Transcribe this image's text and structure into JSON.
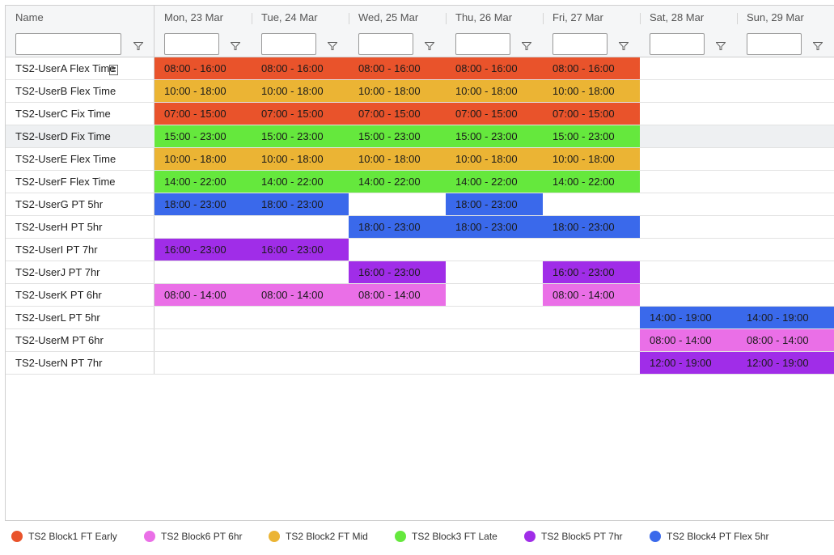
{
  "colors": {
    "block1": "#e9532b",
    "block2": "#ebb434",
    "block3": "#65e83d",
    "block4": "#3a69eb",
    "block5": "#a02de8",
    "block6": "#ea6fe7"
  },
  "columns": {
    "name": "Name",
    "days": [
      "Mon, 23 Mar",
      "Tue, 24 Mar",
      "Wed, 25 Mar",
      "Thu, 26 Mar",
      "Fri, 27 Mar",
      "Sat, 28 Mar",
      "Sun, 29 Mar"
    ]
  },
  "rows": [
    {
      "name": "TS2-UserA Flex Time",
      "shifts": [
        {
          "day": 0,
          "time": "08:00 - 16:00",
          "block": "block1"
        },
        {
          "day": 1,
          "time": "08:00 - 16:00",
          "block": "block1"
        },
        {
          "day": 2,
          "time": "08:00 - 16:00",
          "block": "block1"
        },
        {
          "day": 3,
          "time": "08:00 - 16:00",
          "block": "block1"
        },
        {
          "day": 4,
          "time": "08:00 - 16:00",
          "block": "block1"
        }
      ]
    },
    {
      "name": "TS2-UserB Flex Time",
      "shifts": [
        {
          "day": 0,
          "time": "10:00 - 18:00",
          "block": "block2"
        },
        {
          "day": 1,
          "time": "10:00 - 18:00",
          "block": "block2"
        },
        {
          "day": 2,
          "time": "10:00 - 18:00",
          "block": "block2"
        },
        {
          "day": 3,
          "time": "10:00 - 18:00",
          "block": "block2"
        },
        {
          "day": 4,
          "time": "10:00 - 18:00",
          "block": "block2"
        }
      ]
    },
    {
      "name": "TS2-UserC Fix Time",
      "shifts": [
        {
          "day": 0,
          "time": "07:00 - 15:00",
          "block": "block1"
        },
        {
          "day": 1,
          "time": "07:00 - 15:00",
          "block": "block1"
        },
        {
          "day": 2,
          "time": "07:00 - 15:00",
          "block": "block1"
        },
        {
          "day": 3,
          "time": "07:00 - 15:00",
          "block": "block1"
        },
        {
          "day": 4,
          "time": "07:00 - 15:00",
          "block": "block1"
        }
      ]
    },
    {
      "name": "TS2-UserD Fix Time",
      "selected": true,
      "shifts": [
        {
          "day": 0,
          "time": "15:00 - 23:00",
          "block": "block3"
        },
        {
          "day": 1,
          "time": "15:00 - 23:00",
          "block": "block3"
        },
        {
          "day": 2,
          "time": "15:00 - 23:00",
          "block": "block3"
        },
        {
          "day": 3,
          "time": "15:00 - 23:00",
          "block": "block3"
        },
        {
          "day": 4,
          "time": "15:00 - 23:00",
          "block": "block3"
        }
      ]
    },
    {
      "name": "TS2-UserE Flex Time",
      "shifts": [
        {
          "day": 0,
          "time": "10:00 - 18:00",
          "block": "block2"
        },
        {
          "day": 1,
          "time": "10:00 - 18:00",
          "block": "block2"
        },
        {
          "day": 2,
          "time": "10:00 - 18:00",
          "block": "block2"
        },
        {
          "day": 3,
          "time": "10:00 - 18:00",
          "block": "block2"
        },
        {
          "day": 4,
          "time": "10:00 - 18:00",
          "block": "block2"
        }
      ]
    },
    {
      "name": "TS2-UserF Flex Time",
      "shifts": [
        {
          "day": 0,
          "time": "14:00 - 22:00",
          "block": "block3"
        },
        {
          "day": 1,
          "time": "14:00 - 22:00",
          "block": "block3"
        },
        {
          "day": 2,
          "time": "14:00 - 22:00",
          "block": "block3"
        },
        {
          "day": 3,
          "time": "14:00 - 22:00",
          "block": "block3"
        },
        {
          "day": 4,
          "time": "14:00 - 22:00",
          "block": "block3"
        }
      ]
    },
    {
      "name": "TS2-UserG PT 5hr",
      "shifts": [
        {
          "day": 0,
          "time": "18:00 - 23:00",
          "block": "block4"
        },
        {
          "day": 1,
          "time": "18:00 - 23:00",
          "block": "block4"
        },
        {
          "day": 3,
          "time": "18:00 - 23:00",
          "block": "block4"
        }
      ]
    },
    {
      "name": "TS2-UserH PT 5hr",
      "shifts": [
        {
          "day": 2,
          "time": "18:00 - 23:00",
          "block": "block4"
        },
        {
          "day": 3,
          "time": "18:00 - 23:00",
          "block": "block4"
        },
        {
          "day": 4,
          "time": "18:00 - 23:00",
          "block": "block4"
        }
      ]
    },
    {
      "name": "TS2-UserI PT 7hr",
      "shifts": [
        {
          "day": 0,
          "time": "16:00 - 23:00",
          "block": "block5"
        },
        {
          "day": 1,
          "time": "16:00 - 23:00",
          "block": "block5"
        }
      ]
    },
    {
      "name": "TS2-UserJ PT 7hr",
      "shifts": [
        {
          "day": 2,
          "time": "16:00 - 23:00",
          "block": "block5"
        },
        {
          "day": 4,
          "time": "16:00 - 23:00",
          "block": "block5"
        }
      ]
    },
    {
      "name": "TS2-UserK PT 6hr",
      "shifts": [
        {
          "day": 0,
          "time": "08:00 - 14:00",
          "block": "block6"
        },
        {
          "day": 1,
          "time": "08:00 - 14:00",
          "block": "block6"
        },
        {
          "day": 2,
          "time": "08:00 - 14:00",
          "block": "block6"
        },
        {
          "day": 4,
          "time": "08:00 - 14:00",
          "block": "block6"
        }
      ]
    },
    {
      "name": "TS2-UserL PT 5hr",
      "shifts": [
        {
          "day": 5,
          "time": "14:00 - 19:00",
          "block": "block4"
        },
        {
          "day": 6,
          "time": "14:00 - 19:00",
          "block": "block4"
        }
      ]
    },
    {
      "name": "TS2-UserM PT 6hr",
      "shifts": [
        {
          "day": 5,
          "time": "08:00 - 14:00",
          "block": "block6"
        },
        {
          "day": 6,
          "time": "08:00 - 14:00",
          "block": "block6"
        }
      ]
    },
    {
      "name": "TS2-UserN PT 7hr",
      "shifts": [
        {
          "day": 5,
          "time": "12:00 - 19:00",
          "block": "block5"
        },
        {
          "day": 6,
          "time": "12:00 - 19:00",
          "block": "block5"
        }
      ]
    }
  ],
  "legend": [
    {
      "label": "TS2 Block1 FT Early",
      "block": "block1"
    },
    {
      "label": "TS2 Block6 PT 6hr",
      "block": "block6"
    },
    {
      "label": "TS2 Block2 FT Mid",
      "block": "block2"
    },
    {
      "label": "TS2 Block3 FT Late",
      "block": "block3"
    },
    {
      "label": "TS2 Block5 PT 7hr",
      "block": "block5"
    },
    {
      "label": "TS2 Block4 PT Flex 5hr",
      "block": "block4"
    }
  ]
}
